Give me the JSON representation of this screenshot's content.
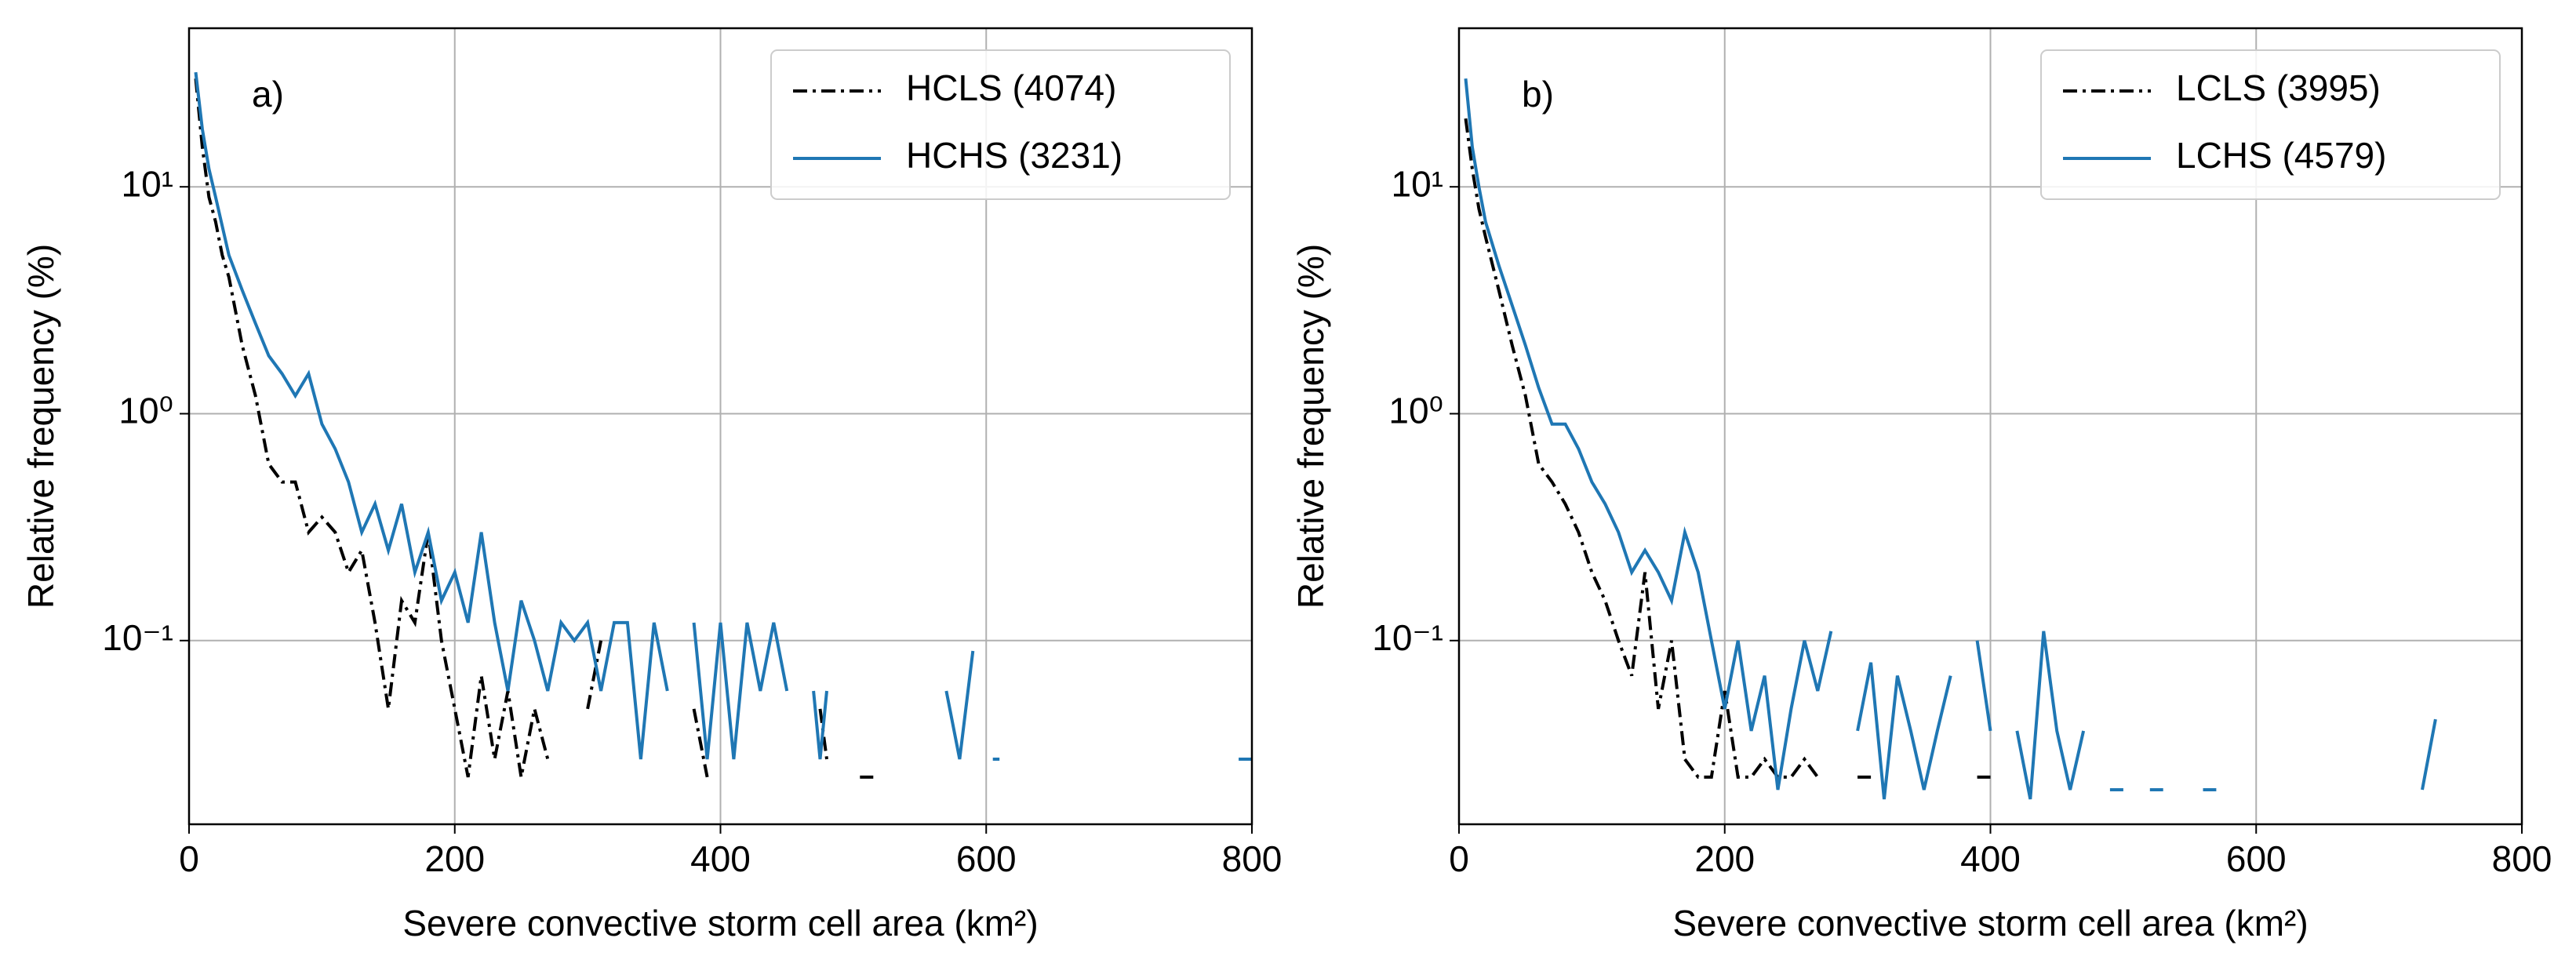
{
  "chart_data": [
    {
      "type": "line",
      "panel_label": "a)",
      "xlabel": "Severe convective storm cell area (km²)",
      "ylabel": "Relative frequency (%)",
      "xlim": [
        0,
        800
      ],
      "xticks": [
        0,
        200,
        400,
        600,
        800
      ],
      "ylim": [
        0.0155,
        50
      ],
      "yscale": "log",
      "yticks": [
        {
          "value": 0.1,
          "label": "10⁻¹"
        },
        {
          "value": 1,
          "label": "10⁰"
        },
        {
          "value": 10,
          "label": "10¹"
        }
      ],
      "grid": true,
      "legend": "upper right",
      "series": [
        {
          "name": "HCLS (4074)",
          "color": "#000000",
          "linestyle": "dashdot",
          "x": [
            5,
            10,
            15,
            20,
            25,
            30,
            40,
            50,
            60,
            70,
            80,
            90,
            100,
            110,
            120,
            130,
            140,
            150,
            160,
            170,
            180,
            190,
            200,
            210,
            220,
            230,
            240,
            250,
            260,
            270,
            280,
            300,
            310,
            320,
            380,
            390,
            400,
            475,
            480,
            490,
            505,
            515
          ],
          "values": [
            30,
            15,
            9,
            7,
            5,
            4,
            2,
            1.2,
            0.6,
            0.5,
            0.5,
            0.3,
            0.35,
            0.3,
            0.2,
            0.25,
            0.12,
            0.05,
            0.15,
            0.12,
            0.3,
            0.1,
            0.05,
            0.025,
            0.07,
            0.03,
            0.06,
            0.025,
            0.05,
            0.03,
            null,
            0.05,
            0.1,
            null,
            0.05,
            0.025,
            null,
            0.05,
            0.03,
            null,
            0.025,
            0.025
          ]
        },
        {
          "name": "HCHS (3231)",
          "color": "#1f77b4",
          "linestyle": "solid",
          "x": [
            5,
            10,
            15,
            20,
            30,
            40,
            50,
            60,
            70,
            80,
            90,
            100,
            110,
            120,
            130,
            140,
            150,
            160,
            170,
            180,
            190,
            200,
            210,
            220,
            230,
            240,
            250,
            260,
            270,
            280,
            290,
            300,
            310,
            320,
            330,
            340,
            350,
            360,
            370,
            380,
            390,
            400,
            410,
            420,
            430,
            440,
            450,
            460,
            470,
            475,
            480,
            490,
            570,
            580,
            590,
            600,
            605,
            610,
            620,
            790,
            800
          ],
          "values": [
            32,
            18,
            12,
            9,
            5,
            3.5,
            2.5,
            1.8,
            1.5,
            1.2,
            1.5,
            0.9,
            0.7,
            0.5,
            0.3,
            0.4,
            0.25,
            0.4,
            0.2,
            0.3,
            0.15,
            0.2,
            0.12,
            0.3,
            0.12,
            0.06,
            0.15,
            0.1,
            0.06,
            0.12,
            0.1,
            0.12,
            0.06,
            0.12,
            0.12,
            0.03,
            0.12,
            0.06,
            null,
            0.12,
            0.03,
            0.12,
            0.03,
            0.12,
            0.06,
            0.12,
            0.06,
            null,
            0.06,
            0.03,
            0.06,
            null,
            0.06,
            0.03,
            0.09,
            null,
            0.03,
            0.03,
            null,
            0.03,
            0.03
          ]
        }
      ]
    },
    {
      "type": "line",
      "panel_label": "b)",
      "xlabel": "Severe convective storm cell area (km²)",
      "ylabel": "Relative frequency (%)",
      "xlim": [
        0,
        800
      ],
      "xticks": [
        0,
        200,
        400,
        600,
        800
      ],
      "ylim": [
        0.0155,
        50
      ],
      "yscale": "log",
      "yticks": [
        {
          "value": 0.1,
          "label": "10⁻¹"
        },
        {
          "value": 1,
          "label": "10⁰"
        },
        {
          "value": 10,
          "label": "10¹"
        }
      ],
      "grid": true,
      "legend": "upper right",
      "series": [
        {
          "name": "LCLS (3995)",
          "color": "#000000",
          "linestyle": "dashdot",
          "x": [
            5,
            10,
            15,
            20,
            30,
            40,
            50,
            60,
            70,
            80,
            90,
            100,
            110,
            120,
            130,
            140,
            150,
            160,
            170,
            180,
            190,
            200,
            210,
            220,
            230,
            240,
            250,
            260,
            270,
            280,
            300,
            310,
            320,
            370,
            380,
            390,
            400
          ],
          "values": [
            20,
            12,
            8,
            6,
            3.5,
            2,
            1.2,
            0.6,
            0.5,
            0.4,
            0.3,
            0.2,
            0.15,
            0.1,
            0.07,
            0.2,
            0.05,
            0.1,
            0.03,
            0.025,
            0.025,
            0.06,
            0.025,
            0.025,
            0.03,
            0.025,
            0.025,
            0.03,
            0.025,
            null,
            0.025,
            0.025,
            null,
            0.025,
            null,
            0.025,
            0.025
          ]
        },
        {
          "name": "LCHS (4579)",
          "color": "#1f77b4",
          "linestyle": "solid",
          "x": [
            5,
            10,
            15,
            20,
            30,
            40,
            50,
            60,
            70,
            80,
            90,
            100,
            110,
            120,
            130,
            140,
            150,
            160,
            170,
            180,
            190,
            200,
            210,
            220,
            230,
            240,
            250,
            260,
            270,
            280,
            290,
            300,
            310,
            320,
            330,
            340,
            350,
            360,
            370,
            380,
            390,
            400,
            410,
            420,
            430,
            440,
            450,
            460,
            470,
            480,
            490,
            500,
            510,
            520,
            530,
            550,
            560,
            570,
            600,
            725,
            735
          ],
          "values": [
            30,
            15,
            10,
            7,
            4.5,
            3,
            2,
            1.3,
            0.9,
            0.9,
            0.7,
            0.5,
            0.4,
            0.3,
            0.2,
            0.25,
            0.2,
            0.15,
            0.3,
            0.2,
            0.1,
            0.05,
            0.1,
            0.04,
            0.07,
            0.022,
            0.05,
            0.1,
            0.06,
            0.11,
            null,
            0.04,
            0.08,
            0.02,
            0.07,
            0.04,
            0.022,
            0.04,
            0.07,
            null,
            0.1,
            0.04,
            null,
            0.04,
            0.02,
            0.11,
            0.04,
            0.022,
            0.04,
            null,
            0.022,
            0.022,
            null,
            0.022,
            0.022,
            null,
            0.022,
            0.022,
            null,
            0.022,
            0.045
          ]
        }
      ]
    }
  ]
}
